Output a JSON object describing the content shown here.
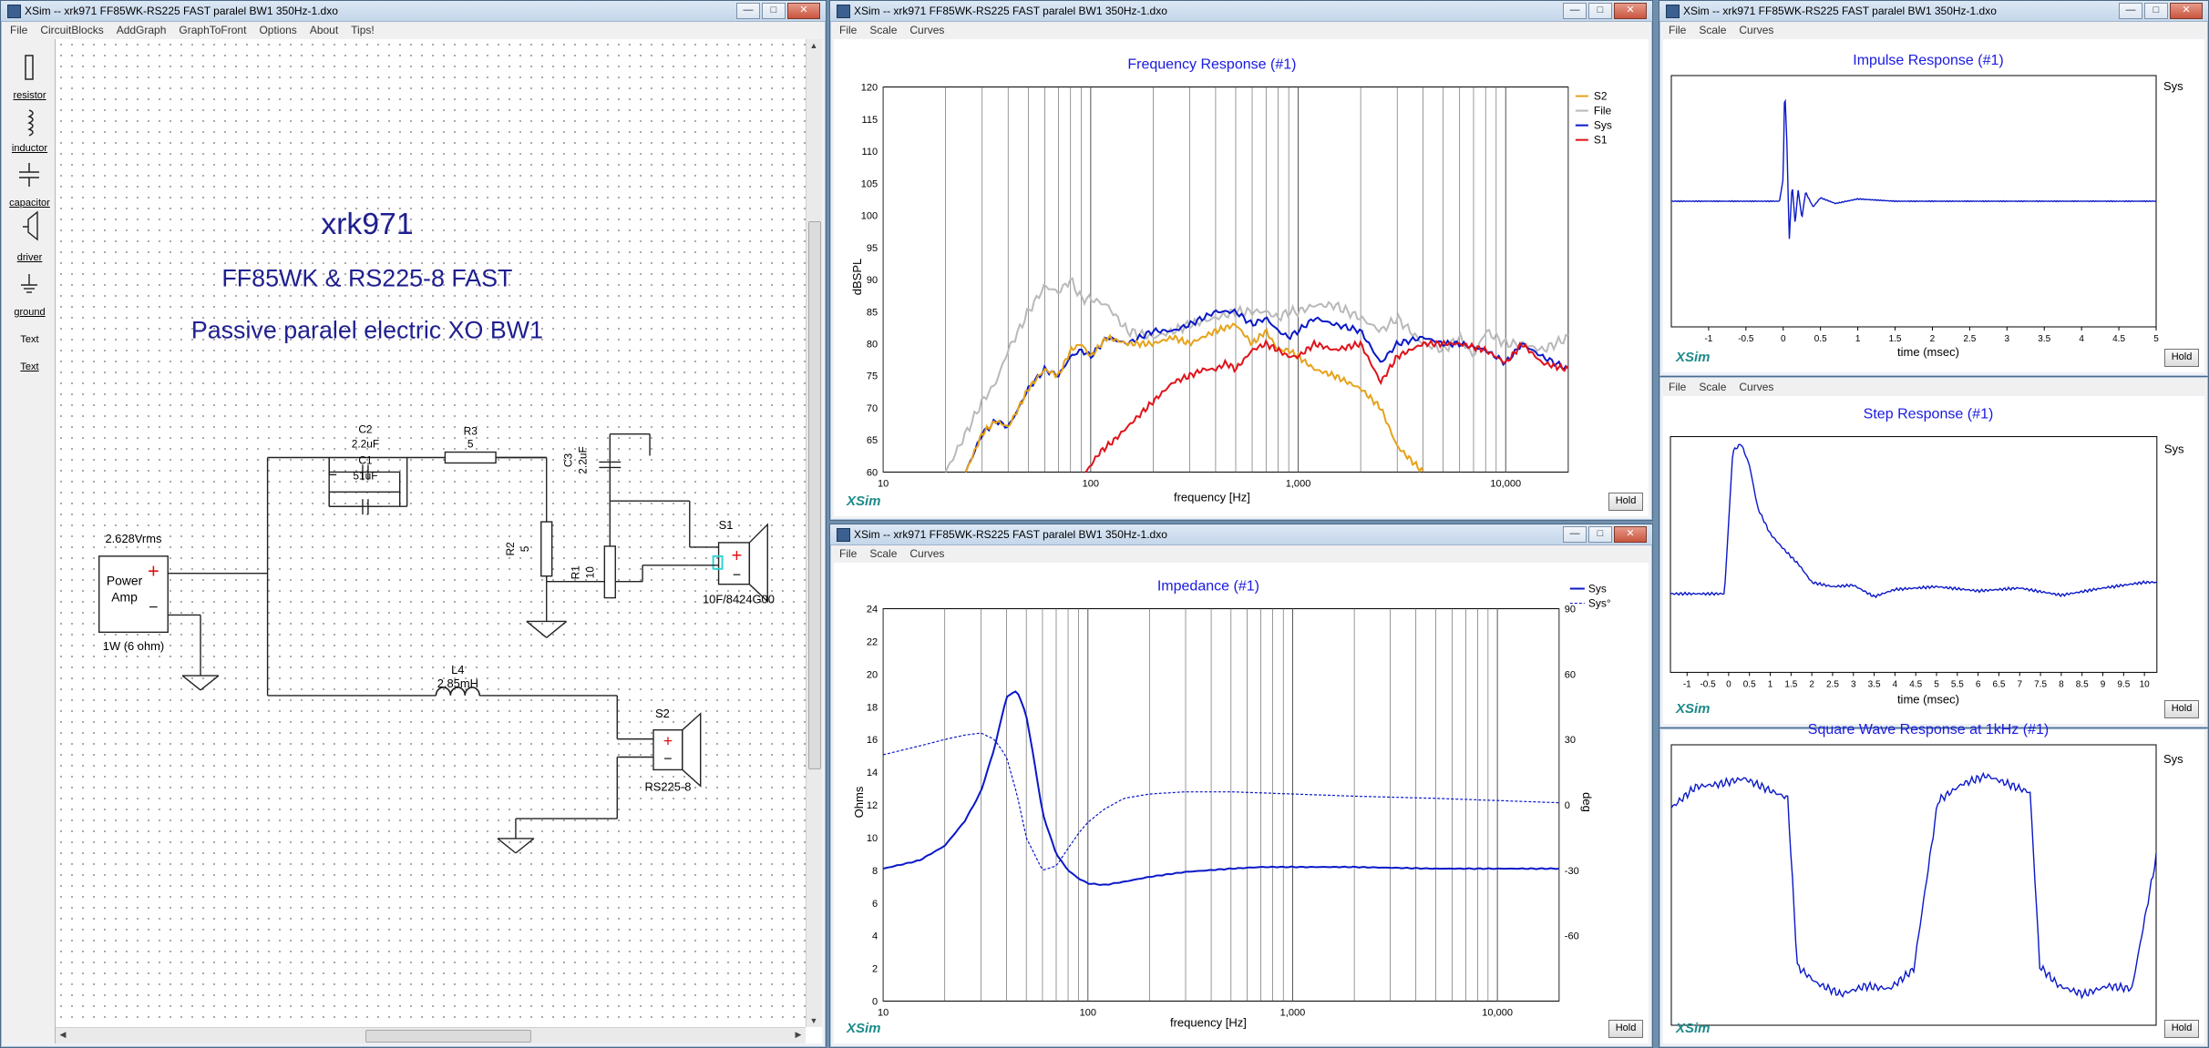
{
  "window_title": "XSim -- xrk971 FF85WK-RS225 FAST paralel BW1 350Hz-1.dxo",
  "main_menu": [
    "File",
    "CircuitBlocks",
    "AddGraph",
    "GraphToFront",
    "Options",
    "About",
    "Tips!"
  ],
  "graph_menu": [
    "File",
    "Scale",
    "Curves"
  ],
  "window_buttons": {
    "minimize": "—",
    "maximize": "□",
    "close": "✕"
  },
  "toolbox": [
    "resistor",
    "inductor",
    "capacitor",
    "driver",
    "ground",
    "Text",
    "Text"
  ],
  "schematic": {
    "title": "xrk971",
    "subtitle": "FF85WK & RS225-8 FAST",
    "description": "Passive paralel electric XO BW1",
    "source_level": "2.628Vrms",
    "amp_label_1": "Power",
    "amp_label_2": "Amp",
    "amp_rating": "1W (6 ohm)",
    "c2_name": "C2",
    "c2_value": "2.2uF",
    "c1_name": "C1",
    "c1_value": "51uF",
    "r3_name": "R3",
    "r3_value": "5",
    "c3_name": "C3",
    "c3_value": "2.2uF",
    "r2_name": "R2",
    "r2_value": "5",
    "r1_name": "R1",
    "r1_value": "10",
    "s1_name": "S1",
    "s1_model": "10F/8424G00",
    "l4_name": "L4",
    "l4_value": "2.85mH",
    "s2_name": "S2",
    "s2_model": "RS225-8",
    "plus": "+",
    "minus": "−"
  },
  "hold_label": "Hold",
  "xsim_logo": "XSim",
  "freq_graph": {
    "title": "Frequency Response (#1)",
    "xlabel": "frequency [Hz]",
    "ylabel": "dBSPL",
    "xticks": [
      "10",
      "100",
      "1,000",
      "10,000"
    ],
    "yticks": [
      "60",
      "65",
      "70",
      "75",
      "80",
      "85",
      "90",
      "95",
      "100",
      "105",
      "110",
      "115",
      "120"
    ],
    "legend": [
      {
        "name": "S2",
        "color": "#e6a21a"
      },
      {
        "name": "File",
        "color": "#b9b9b9"
      },
      {
        "name": "Sys",
        "color": "#0a18c8"
      },
      {
        "name": "S1",
        "color": "#e0121a"
      }
    ]
  },
  "imp_graph": {
    "title": "Impedance (#1)",
    "xlabel": "frequency [Hz]",
    "ylabel": "Ohms",
    "y2label": "deg",
    "xticks": [
      "10",
      "100",
      "1,000",
      "10,000"
    ],
    "yticks": [
      "0",
      "2",
      "4",
      "6",
      "8",
      "10",
      "12",
      "14",
      "16",
      "18",
      "20",
      "22",
      "24"
    ],
    "y2ticks": [
      "-60",
      "-30",
      "0",
      "30",
      "60",
      "90"
    ],
    "legend": [
      "Sys",
      "Sys°"
    ]
  },
  "impulse_graph": {
    "title": "Impulse Response (#1)",
    "xlabel": "time (msec)",
    "legend": "Sys",
    "xticks": [
      "-1",
      "-0.5",
      "0",
      "0.5",
      "1",
      "1.5",
      "2",
      "2.5",
      "3",
      "3.5",
      "4",
      "4.5",
      "5"
    ]
  },
  "step_graph": {
    "title": "Step Response (#1)",
    "xlabel": "time (msec)",
    "legend": "Sys",
    "xticks": [
      "-1",
      "-0.5",
      "0",
      "0.5",
      "1",
      "1.5",
      "2",
      "2.5",
      "3",
      "3.5",
      "4",
      "4.5",
      "5",
      "5.5",
      "6",
      "6.5",
      "7",
      "7.5",
      "8",
      "8.5",
      "9",
      "9.5",
      "10"
    ]
  },
  "square_graph": {
    "title": "Square Wave Response at 1kHz (#1)",
    "legend": "Sys"
  },
  "chart_data": [
    {
      "type": "line",
      "title": "Frequency Response (#1)",
      "xlabel": "frequency [Hz]",
      "ylabel": "dBSPL",
      "xscale": "log",
      "xlim": [
        10,
        20000
      ],
      "ylim": [
        60,
        120
      ],
      "grid": true,
      "legend": "top-right",
      "series": [
        {
          "name": "File",
          "color": "#b9b9b9",
          "x": [
            20,
            25,
            30,
            35,
            40,
            45,
            50,
            55,
            60,
            70,
            80,
            90,
            100,
            120,
            150,
            200,
            250,
            300,
            400,
            500,
            600,
            700,
            800,
            900,
            1000,
            1200,
            1500,
            2000,
            2500,
            3000,
            4000,
            5000,
            6000,
            7000,
            8000,
            10000,
            12000,
            15000,
            20000
          ],
          "y": [
            60,
            66,
            71,
            74,
            79,
            82,
            85,
            87,
            89,
            88,
            90,
            87,
            87,
            86,
            82,
            81,
            82,
            83,
            84,
            85,
            85,
            85,
            84,
            85,
            85,
            86,
            86,
            84,
            82,
            84,
            80,
            79,
            81,
            78,
            82,
            80,
            80,
            79,
            81
          ]
        },
        {
          "name": "Sys",
          "color": "#0a18c8",
          "x": [
            25,
            30,
            35,
            40,
            45,
            50,
            60,
            70,
            80,
            90,
            100,
            120,
            150,
            200,
            250,
            300,
            400,
            500,
            600,
            700,
            800,
            900,
            1000,
            1200,
            1500,
            2000,
            2500,
            3000,
            4000,
            5000,
            6000,
            8000,
            10000,
            12000,
            15000,
            20000
          ],
          "y": [
            60,
            66,
            68,
            67,
            70,
            73,
            76,
            75,
            78,
            79,
            78,
            81,
            80,
            82,
            82,
            83,
            85,
            85,
            83,
            84,
            82,
            81,
            82,
            84,
            83,
            82,
            77,
            80,
            81,
            80,
            80,
            79,
            77,
            80,
            78,
            76
          ]
        },
        {
          "name": "S2",
          "color": "#e6a21a",
          "x": [
            25,
            30,
            35,
            40,
            45,
            50,
            60,
            70,
            80,
            90,
            100,
            120,
            150,
            200,
            250,
            300,
            400,
            500,
            600,
            700,
            800,
            900,
            1000,
            1200,
            1500,
            2000,
            2500,
            3000,
            4000
          ],
          "y": [
            60,
            66,
            68,
            67,
            70,
            73,
            76,
            75,
            79,
            80,
            78,
            81,
            80,
            80,
            81,
            80,
            82,
            83,
            80,
            82,
            79,
            79,
            78,
            76,
            75,
            73,
            70,
            64,
            60
          ]
        },
        {
          "name": "S1",
          "color": "#e0121a",
          "x": [
            95,
            110,
            130,
            150,
            200,
            250,
            300,
            350,
            400,
            450,
            500,
            600,
            700,
            800,
            900,
            1000,
            1200,
            1500,
            2000,
            2500,
            3000,
            4000,
            5000,
            6000,
            8000,
            10000,
            12000,
            15000,
            20000
          ],
          "y": [
            60,
            63,
            65,
            67,
            71,
            74,
            75,
            76,
            76,
            77,
            76,
            79,
            80,
            79,
            78,
            78,
            80,
            79,
            80,
            74,
            78,
            80,
            80,
            80,
            79,
            77,
            80,
            77,
            76
          ]
        }
      ]
    },
    {
      "type": "line",
      "title": "Impedance (#1)",
      "xlabel": "frequency [Hz]",
      "ylabel": "Ohms",
      "y2label": "deg",
      "xscale": "log",
      "xlim": [
        10,
        20000
      ],
      "ylim": [
        0,
        24
      ],
      "y2lim": [
        -90,
        90
      ],
      "grid": true,
      "legend": "top-right",
      "series": [
        {
          "name": "Sys",
          "axis": "left",
          "x": [
            10,
            15,
            20,
            25,
            30,
            35,
            40,
            45,
            50,
            55,
            60,
            70,
            80,
            90,
            100,
            120,
            150,
            200,
            300,
            500,
            700,
            1000,
            2000,
            5000,
            10000,
            20000
          ],
          "y": [
            8.1,
            8.6,
            9.5,
            11.0,
            12.8,
            15.5,
            18.6,
            19.0,
            17.5,
            14.5,
            11.5,
            9.0,
            8.0,
            7.5,
            7.2,
            7.1,
            7.3,
            7.6,
            7.9,
            8.1,
            8.2,
            8.2,
            8.2,
            8.1,
            8.1,
            8.1
          ]
        },
        {
          "name": "Sys°",
          "axis": "right",
          "x": [
            10,
            15,
            20,
            25,
            30,
            35,
            40,
            45,
            50,
            60,
            70,
            80,
            90,
            100,
            120,
            150,
            200,
            300,
            500,
            1000,
            2000,
            5000,
            10000,
            20000
          ],
          "y": [
            23,
            27,
            30,
            32,
            33,
            30,
            22,
            5,
            -15,
            -30,
            -28,
            -20,
            -13,
            -8,
            -2,
            3,
            5,
            6,
            6,
            5,
            4,
            3,
            2,
            1
          ]
        }
      ]
    },
    {
      "type": "line",
      "title": "Impulse Response (#1)",
      "xlabel": "time (msec)",
      "xlim": [
        -1.5,
        5
      ],
      "series": [
        {
          "name": "Sys",
          "x": [
            -1.5,
            -0.2,
            -0.05,
            0,
            0.02,
            0.05,
            0.08,
            0.12,
            0.16,
            0.2,
            0.25,
            0.3,
            0.4,
            0.5,
            0.7,
            1,
            1.5,
            2,
            3,
            4,
            5
          ],
          "y": [
            0,
            0,
            0,
            0.2,
            1.0,
            0.5,
            -0.35,
            0.15,
            -0.2,
            0.1,
            -0.15,
            0.08,
            -0.05,
            0.03,
            -0.02,
            0.02,
            0,
            0,
            0,
            0,
            0
          ]
        }
      ]
    },
    {
      "type": "line",
      "title": "Step Response (#1)",
      "xlabel": "time (msec)",
      "xlim": [
        -1.4,
        10.3
      ],
      "series": [
        {
          "name": "Sys",
          "x": [
            -1.4,
            -0.1,
            0,
            0.1,
            0.3,
            0.5,
            0.7,
            1,
            1.3,
            1.7,
            2,
            2.5,
            3,
            3.5,
            4,
            5,
            6,
            7,
            8,
            9,
            10,
            10.3
          ],
          "y": [
            0,
            0,
            0.5,
            1.0,
            1.05,
            0.9,
            0.6,
            0.42,
            0.32,
            0.2,
            0.08,
            0.05,
            0.06,
            -0.02,
            0.03,
            0.05,
            0.02,
            0.04,
            -0.01,
            0.04,
            0.08,
            0.08
          ]
        }
      ]
    },
    {
      "type": "line",
      "title": "Square Wave Response at 1kHz (#1)",
      "xlim": [
        0,
        2
      ],
      "series": [
        {
          "name": "Sys",
          "x": [
            0,
            0.1,
            0.2,
            0.3,
            0.4,
            0.48,
            0.52,
            0.6,
            0.7,
            0.8,
            0.9,
            1.0,
            1.1,
            1.2,
            1.3,
            1.48,
            1.52,
            1.6,
            1.7,
            1.8,
            1.9,
            2.0
          ],
          "y": [
            0.55,
            0.7,
            0.72,
            0.76,
            0.68,
            0.62,
            -0.58,
            -0.7,
            -0.78,
            -0.72,
            -0.74,
            -0.6,
            0.6,
            0.72,
            0.78,
            0.66,
            -0.58,
            -0.72,
            -0.78,
            -0.72,
            -0.74,
            0.2
          ]
        }
      ]
    }
  ]
}
